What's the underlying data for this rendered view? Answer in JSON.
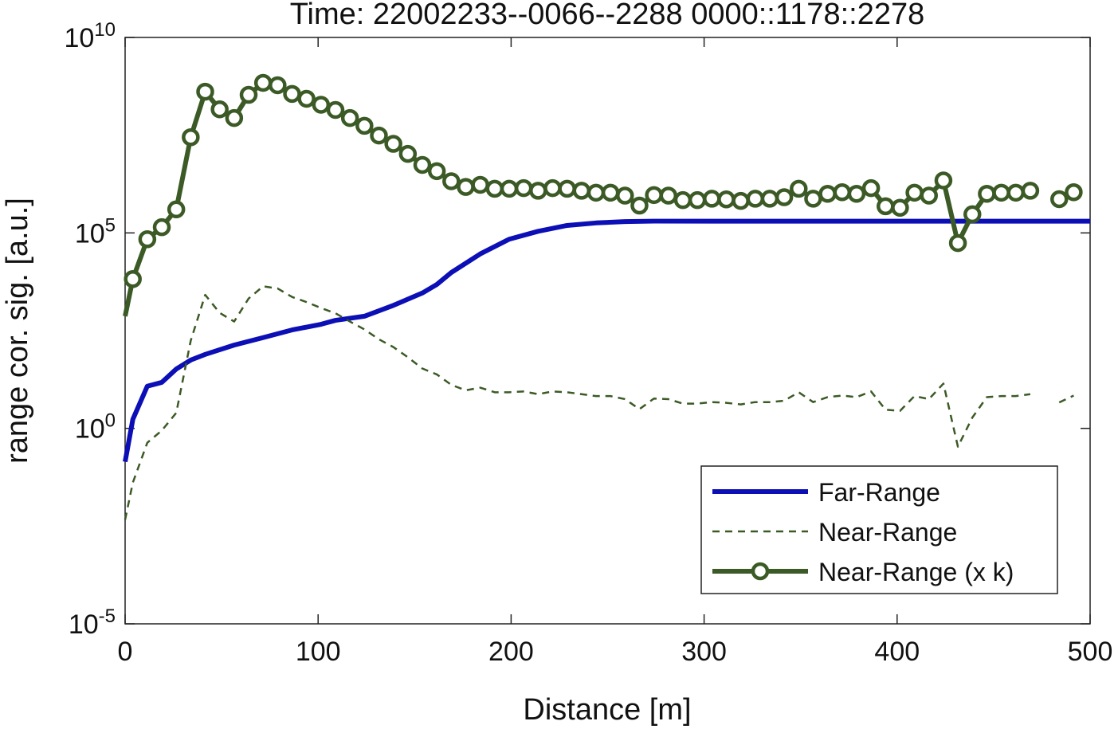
{
  "chart_data": {
    "type": "line",
    "title": "Time: 22002233--0066--2288  0000::1178::2278",
    "x_label": "Distance [m]",
    "y_label": "range cor. sig. [a.u.]",
    "xlim": [
      0,
      500
    ],
    "xticks": [
      0,
      100,
      200,
      300,
      400,
      500
    ],
    "ylim": [
      1e-05,
      10000000000
    ],
    "yticks": [
      {
        "value": 1e-05,
        "label": "10^-5"
      },
      {
        "value": 1,
        "label": "10^0"
      },
      {
        "value": 100000,
        "label": "10^5"
      },
      {
        "value": 10000000000,
        "label": "10^10"
      }
    ],
    "y_scale": "log",
    "grid": false,
    "legend": "lower right",
    "series": [
      {
        "name": "Far-Range",
        "color": "#0b0fb5",
        "style": "solid",
        "x": [
          0,
          4,
          11.5,
          19,
          26.5,
          34,
          41.5,
          56.5,
          71.5,
          86.5,
          101.5,
          109,
          124,
          139,
          154,
          161.5,
          169,
          184,
          199,
          214,
          229,
          244,
          259,
          274,
          500
        ],
        "values": [
          0.14,
          1.7,
          12,
          15,
          33,
          56,
          78,
          135,
          210,
          330,
          460,
          580,
          740,
          1400,
          2900,
          4800,
          9700,
          29000,
          69000,
          110000,
          155000,
          180000,
          195000,
          200000,
          200000
        ]
      },
      {
        "name": "Near-Range",
        "color": "#3b5a25",
        "style": "dashed",
        "x": [
          0,
          4,
          11.5,
          19,
          26.5,
          34,
          41.5,
          49,
          56.5,
          64,
          71.5,
          79,
          86.5,
          94,
          101.5,
          109,
          116.5,
          124,
          131.5,
          139,
          146.5,
          154,
          161.5,
          169,
          176.5,
          184,
          191.5,
          199,
          206.5,
          214,
          221.5,
          229,
          236.5,
          244,
          251.5,
          259,
          266.5,
          274,
          281.5,
          289,
          296.5,
          304,
          311.5,
          319,
          326.5,
          334,
          341.5,
          349,
          356.5,
          364,
          371.5,
          379,
          386.5,
          394,
          401.5,
          409,
          416.5,
          424,
          431.5,
          439,
          446.5,
          454,
          461.5,
          469,
          476.5,
          484,
          491.5
        ],
        "values": [
          0.0046,
          0.041,
          0.43,
          0.88,
          2.5,
          175,
          2600,
          900,
          540,
          2100,
          4300,
          3800,
          2300,
          1700,
          1200,
          880,
          540,
          340,
          190,
          120,
          66,
          34,
          24,
          13,
          9.4,
          11,
          8.4,
          8.4,
          8.8,
          7.5,
          8.8,
          8.4,
          7.5,
          6.7,
          6.7,
          5.6,
          3.1,
          5.8,
          5.6,
          4.3,
          4.3,
          4.7,
          4.5,
          4.1,
          4.7,
          4.7,
          5.1,
          8.4,
          4.7,
          6.3,
          6.9,
          6.3,
          8.8,
          3,
          2.8,
          6.7,
          5.6,
          14,
          0.34,
          1.9,
          6.3,
          6.7,
          6.7,
          7.5,
          null,
          4.6,
          6.9
        ]
      },
      {
        "name": "Near-Range (x k)",
        "color": "#3b5a25",
        "style": "solid",
        "marker": "circle",
        "x": [
          0,
          4,
          11.5,
          19,
          26.5,
          34,
          41.5,
          49,
          56.5,
          64,
          71.5,
          79,
          86.5,
          94,
          101.5,
          109,
          116.5,
          124,
          131.5,
          139,
          146.5,
          154,
          161.5,
          169,
          176.5,
          184,
          191.5,
          199,
          206.5,
          214,
          221.5,
          229,
          236.5,
          244,
          251.5,
          259,
          266.5,
          274,
          281.5,
          289,
          296.5,
          304,
          311.5,
          319,
          326.5,
          334,
          341.5,
          349,
          356.5,
          364,
          371.5,
          379,
          386.5,
          394,
          401.5,
          409,
          416.5,
          424,
          431.5,
          439,
          446.5,
          454,
          461.5,
          469,
          476.5,
          484,
          491.5
        ],
        "values": [
          740,
          6600,
          69000,
          140000,
          400000,
          28000000,
          410000000,
          145000000,
          87000000,
          340000000,
          690000000,
          600000000,
          360000000,
          270000000,
          190000000,
          140000000,
          87000000,
          55000000,
          31000000,
          19000000,
          10500000,
          5500000,
          3800000,
          2100000,
          1500000,
          1700000,
          1350000,
          1350000,
          1400000,
          1200000,
          1400000,
          1350000,
          1200000,
          1070000,
          1070000,
          900000,
          500000,
          930000,
          900000,
          690000,
          690000,
          750000,
          720000,
          660000,
          750000,
          750000,
          820000,
          1350000,
          750000,
          1000000,
          1100000,
          1000000,
          1400000,
          480000,
          440000,
          1070000,
          900000,
          2200000,
          55000,
          300000,
          1000000,
          1070000,
          1070000,
          1200000,
          null,
          730000,
          1100000
        ]
      }
    ]
  }
}
